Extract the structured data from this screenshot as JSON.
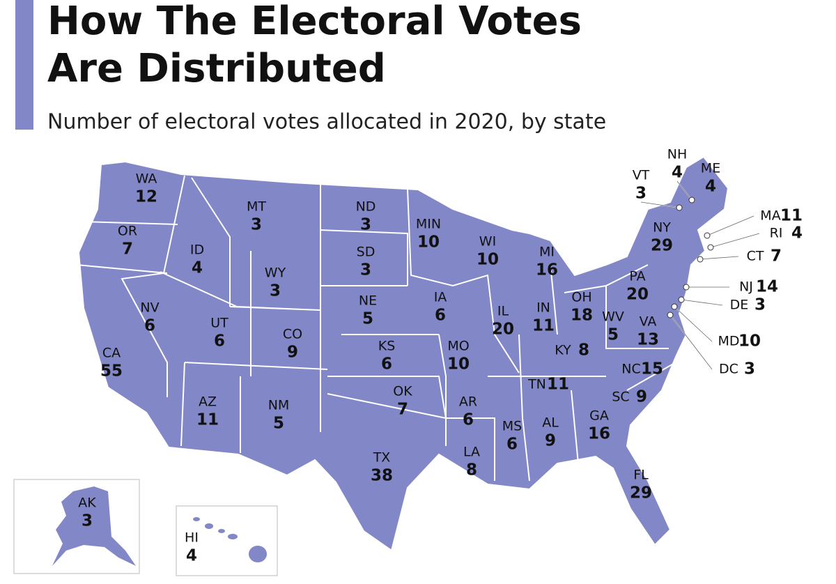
{
  "header": {
    "title_line_1": "How The Electoral Votes",
    "title_line_2": "Are Distributed",
    "subtitle": "Number of electoral votes allocated in 2020, by state"
  },
  "states": [
    {
      "abbr": "WA",
      "votes": 12
    },
    {
      "abbr": "OR",
      "votes": 7
    },
    {
      "abbr": "CA",
      "votes": 55
    },
    {
      "abbr": "NV",
      "votes": 6
    },
    {
      "abbr": "ID",
      "votes": 4
    },
    {
      "abbr": "MT",
      "votes": 3
    },
    {
      "abbr": "WY",
      "votes": 3
    },
    {
      "abbr": "UT",
      "votes": 6
    },
    {
      "abbr": "CO",
      "votes": 9
    },
    {
      "abbr": "AZ",
      "votes": 11
    },
    {
      "abbr": "NM",
      "votes": 5
    },
    {
      "abbr": "ND",
      "votes": 3
    },
    {
      "abbr": "SD",
      "votes": 3
    },
    {
      "abbr": "NE",
      "votes": 5
    },
    {
      "abbr": "KS",
      "votes": 6
    },
    {
      "abbr": "OK",
      "votes": 7
    },
    {
      "abbr": "TX",
      "votes": 38
    },
    {
      "abbr": "MIN",
      "votes": 10
    },
    {
      "abbr": "IA",
      "votes": 6
    },
    {
      "abbr": "MO",
      "votes": 10
    },
    {
      "abbr": "AR",
      "votes": 6
    },
    {
      "abbr": "LA",
      "votes": 8
    },
    {
      "abbr": "WI",
      "votes": 10
    },
    {
      "abbr": "IL",
      "votes": 20
    },
    {
      "abbr": "MI",
      "votes": 16
    },
    {
      "abbr": "IN",
      "votes": 11
    },
    {
      "abbr": "OH",
      "votes": 18
    },
    {
      "abbr": "KY",
      "votes": 8
    },
    {
      "abbr": "TN",
      "votes": 11
    },
    {
      "abbr": "MS",
      "votes": 6
    },
    {
      "abbr": "AL",
      "votes": 9
    },
    {
      "abbr": "GA",
      "votes": 16
    },
    {
      "abbr": "FL",
      "votes": 29
    },
    {
      "abbr": "SC",
      "votes": 9
    },
    {
      "abbr": "NC",
      "votes": 15
    },
    {
      "abbr": "VA",
      "votes": 13
    },
    {
      "abbr": "WV",
      "votes": 5
    },
    {
      "abbr": "PA",
      "votes": 20
    },
    {
      "abbr": "NY",
      "votes": 29
    },
    {
      "abbr": "VT",
      "votes": 3
    },
    {
      "abbr": "NH",
      "votes": 4
    },
    {
      "abbr": "ME",
      "votes": 4
    },
    {
      "abbr": "MA",
      "votes": 11
    },
    {
      "abbr": "RI",
      "votes": 4
    },
    {
      "abbr": "CT",
      "votes": 7
    },
    {
      "abbr": "NJ",
      "votes": 14
    },
    {
      "abbr": "DE",
      "votes": 3
    },
    {
      "abbr": "MD",
      "votes": 10
    },
    {
      "abbr": "DC",
      "votes": 3
    },
    {
      "abbr": "AK",
      "votes": 3
    },
    {
      "abbr": "HI",
      "votes": 4
    }
  ]
}
